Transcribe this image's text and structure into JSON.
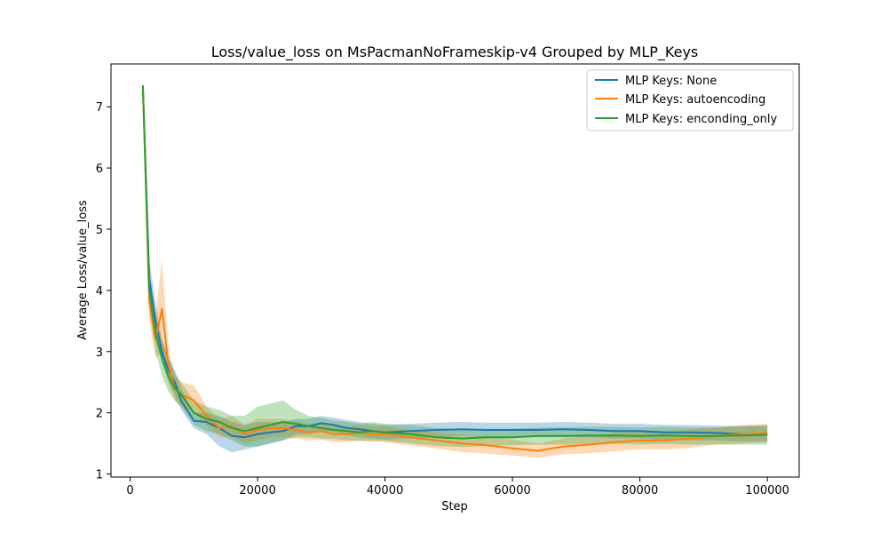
{
  "chart_data": {
    "type": "line",
    "title": "Loss/value_loss on MsPacmanNoFrameskip-v4 Grouped by MLP_Keys",
    "xlabel": "Step",
    "ylabel": "Average Loss/value_loss",
    "xlim": [
      -3000,
      105000
    ],
    "ylim": [
      0.95,
      7.7
    ],
    "xticks": [
      0,
      20000,
      40000,
      60000,
      80000,
      100000
    ],
    "yticks": [
      1,
      2,
      3,
      4,
      5,
      6,
      7
    ],
    "grid": false,
    "legend_position": "top-right",
    "series": [
      {
        "name": "MLP Keys: None",
        "color": "#1f77b4",
        "x": [
          2000,
          3000,
          4000,
          5000,
          6000,
          7000,
          8000,
          10000,
          12000,
          14000,
          16000,
          18000,
          20000,
          22000,
          24000,
          26000,
          28000,
          30000,
          32000,
          34000,
          36000,
          38000,
          40000,
          44000,
          48000,
          52000,
          56000,
          60000,
          64000,
          68000,
          72000,
          76000,
          80000,
          84000,
          88000,
          92000,
          96000,
          100000
        ],
        "y": [
          7.35,
          4.2,
          3.5,
          3.0,
          2.7,
          2.5,
          2.2,
          1.87,
          1.85,
          1.75,
          1.62,
          1.6,
          1.65,
          1.68,
          1.7,
          1.78,
          1.78,
          1.83,
          1.8,
          1.75,
          1.73,
          1.7,
          1.68,
          1.7,
          1.72,
          1.73,
          1.72,
          1.72,
          1.72,
          1.73,
          1.72,
          1.7,
          1.7,
          1.68,
          1.68,
          1.67,
          1.65,
          1.65
        ],
        "lower": [
          7.3,
          3.9,
          3.2,
          2.8,
          2.5,
          2.3,
          2.05,
          1.75,
          1.65,
          1.45,
          1.35,
          1.4,
          1.45,
          1.5,
          1.55,
          1.65,
          1.65,
          1.7,
          1.68,
          1.63,
          1.6,
          1.58,
          1.56,
          1.58,
          1.6,
          1.62,
          1.6,
          1.6,
          1.6,
          1.6,
          1.6,
          1.58,
          1.58,
          1.56,
          1.55,
          1.55,
          1.53,
          1.53
        ],
        "upper": [
          7.4,
          4.5,
          3.8,
          3.2,
          2.9,
          2.7,
          2.4,
          2.0,
          2.0,
          1.95,
          1.85,
          1.8,
          1.85,
          1.85,
          1.85,
          1.9,
          1.9,
          1.95,
          1.92,
          1.88,
          1.85,
          1.82,
          1.8,
          1.82,
          1.84,
          1.85,
          1.84,
          1.84,
          1.84,
          1.85,
          1.84,
          1.82,
          1.82,
          1.8,
          1.8,
          1.79,
          1.78,
          1.78
        ]
      },
      {
        "name": "MLP Keys: autoencoding",
        "color": "#ff7f0e",
        "x": [
          2000,
          3000,
          4000,
          5000,
          6000,
          7000,
          8000,
          10000,
          12000,
          14000,
          16000,
          18000,
          20000,
          22000,
          24000,
          26000,
          28000,
          30000,
          32000,
          34000,
          36000,
          38000,
          40000,
          44000,
          48000,
          52000,
          56000,
          60000,
          64000,
          68000,
          72000,
          76000,
          80000,
          84000,
          88000,
          92000,
          96000,
          100000
        ],
        "y": [
          7.35,
          3.8,
          3.2,
          3.7,
          2.8,
          2.4,
          2.3,
          2.2,
          1.95,
          1.75,
          1.78,
          1.65,
          1.72,
          1.75,
          1.75,
          1.72,
          1.68,
          1.7,
          1.65,
          1.65,
          1.68,
          1.65,
          1.65,
          1.6,
          1.55,
          1.5,
          1.47,
          1.42,
          1.38,
          1.45,
          1.48,
          1.52,
          1.55,
          1.55,
          1.58,
          1.62,
          1.65,
          1.67
        ],
        "lower": [
          7.3,
          3.5,
          2.9,
          3.0,
          2.5,
          2.2,
          2.1,
          2.0,
          1.8,
          1.6,
          1.6,
          1.5,
          1.55,
          1.6,
          1.6,
          1.58,
          1.55,
          1.56,
          1.52,
          1.52,
          1.55,
          1.52,
          1.52,
          1.47,
          1.42,
          1.36,
          1.33,
          1.3,
          1.27,
          1.32,
          1.34,
          1.37,
          1.4,
          1.4,
          1.43,
          1.48,
          1.5,
          1.52
        ],
        "upper": [
          7.4,
          4.1,
          3.6,
          4.5,
          3.1,
          2.6,
          2.5,
          2.45,
          2.1,
          1.9,
          1.95,
          1.8,
          1.9,
          1.9,
          1.9,
          1.86,
          1.82,
          1.84,
          1.78,
          1.78,
          1.8,
          1.78,
          1.78,
          1.73,
          1.68,
          1.64,
          1.61,
          1.56,
          1.5,
          1.58,
          1.62,
          1.67,
          1.7,
          1.7,
          1.73,
          1.76,
          1.8,
          1.82
        ]
      },
      {
        "name": "MLP Keys: enconding_only",
        "color": "#2ca02c",
        "x": [
          2000,
          3000,
          4000,
          5000,
          6000,
          7000,
          8000,
          10000,
          12000,
          14000,
          16000,
          18000,
          20000,
          22000,
          24000,
          26000,
          28000,
          30000,
          32000,
          34000,
          36000,
          38000,
          40000,
          44000,
          48000,
          52000,
          56000,
          60000,
          64000,
          68000,
          72000,
          76000,
          80000,
          84000,
          88000,
          92000,
          96000,
          100000
        ],
        "y": [
          7.35,
          4.0,
          3.3,
          2.9,
          2.6,
          2.4,
          2.3,
          2.0,
          1.9,
          1.85,
          1.75,
          1.7,
          1.75,
          1.8,
          1.85,
          1.82,
          1.78,
          1.75,
          1.72,
          1.7,
          1.68,
          1.7,
          1.68,
          1.65,
          1.6,
          1.58,
          1.6,
          1.6,
          1.62,
          1.62,
          1.63,
          1.63,
          1.62,
          1.63,
          1.62,
          1.62,
          1.63,
          1.64
        ],
        "lower": [
          7.3,
          3.7,
          3.0,
          2.6,
          2.35,
          2.2,
          2.1,
          1.8,
          1.7,
          1.65,
          1.55,
          1.45,
          1.45,
          1.5,
          1.55,
          1.6,
          1.6,
          1.58,
          1.57,
          1.55,
          1.54,
          1.55,
          1.54,
          1.5,
          1.46,
          1.44,
          1.46,
          1.47,
          1.48,
          1.48,
          1.49,
          1.49,
          1.48,
          1.49,
          1.48,
          1.48,
          1.48,
          1.48
        ],
        "upper": [
          7.4,
          4.3,
          3.6,
          3.2,
          2.9,
          2.65,
          2.5,
          2.2,
          2.1,
          2.05,
          1.95,
          1.95,
          2.1,
          2.15,
          2.2,
          2.05,
          1.95,
          1.92,
          1.87,
          1.85,
          1.82,
          1.85,
          1.82,
          1.8,
          1.75,
          1.73,
          1.74,
          1.74,
          1.76,
          1.76,
          1.77,
          1.77,
          1.76,
          1.77,
          1.76,
          1.76,
          1.78,
          1.8
        ]
      }
    ]
  }
}
